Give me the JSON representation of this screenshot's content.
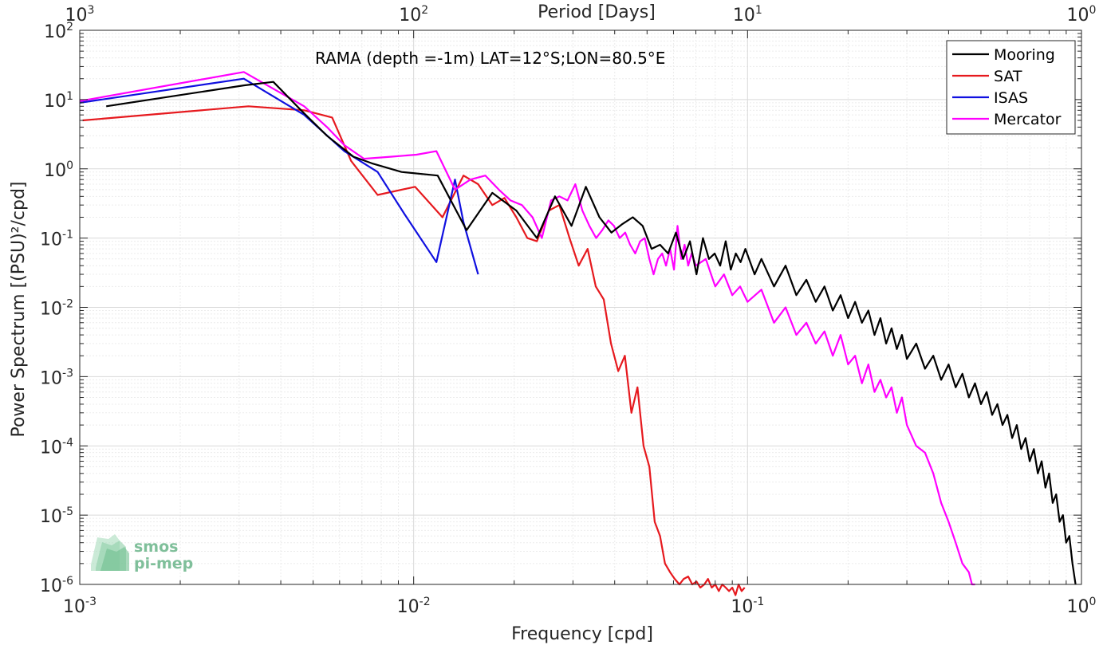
{
  "colors": {
    "Mooring": "#000000",
    "SAT": "#e6191e",
    "ISAS": "#1010e0",
    "Mercator": "#ff00ff"
  },
  "logo": {
    "line1": "smos",
    "line2": "pi-mep"
  },
  "chart_data": {
    "type": "line",
    "title": "RAMA (depth =-1m) LAT=12°S;LON=80.5°E",
    "xlabel": "Frequency [cpd]",
    "ylabel": "Power Spectrum [(PSU)²/cpd]",
    "top_xlabel": "Period [Days]",
    "xscale": "log",
    "yscale": "log",
    "xlim": [
      0.001,
      1
    ],
    "ylim": [
      1e-06,
      100
    ],
    "grid": true,
    "legend_position": "top-right",
    "bottom_ticks": [
      {
        "base": "10",
        "exp": "-3"
      },
      {
        "base": "10",
        "exp": "-2"
      },
      {
        "base": "10",
        "exp": "-1"
      },
      {
        "base": "10",
        "exp": "0"
      }
    ],
    "top_ticks": [
      {
        "base": "10",
        "exp": "3"
      },
      {
        "base": "10",
        "exp": "2"
      },
      {
        "base": "10",
        "exp": "1"
      },
      {
        "base": "10",
        "exp": "0"
      }
    ],
    "y_ticks": [
      {
        "base": "10",
        "exp": "2"
      },
      {
        "base": "10",
        "exp": "1"
      },
      {
        "base": "10",
        "exp": "0"
      },
      {
        "base": "10",
        "exp": "-1"
      },
      {
        "base": "10",
        "exp": "-2"
      },
      {
        "base": "10",
        "exp": "-3"
      },
      {
        "base": "10",
        "exp": "-4"
      },
      {
        "base": "10",
        "exp": "-5"
      },
      {
        "base": "10",
        "exp": "-6"
      }
    ],
    "series": [
      {
        "name": "Mooring",
        "x": [
          0.0012,
          0.0031,
          0.0038,
          0.0046,
          0.0055,
          0.0066,
          0.0075,
          0.0092,
          0.0118,
          0.0144,
          0.0172,
          0.0203,
          0.0234,
          0.0265,
          0.0297,
          0.0328,
          0.036,
          0.0391,
          0.0422,
          0.0453,
          0.0485,
          0.0516,
          0.0547,
          0.0578,
          0.061,
          0.0641,
          0.0672,
          0.0703,
          0.0735,
          0.0766,
          0.0797,
          0.0828,
          0.086,
          0.0891,
          0.0922,
          0.0953,
          0.0985,
          0.105,
          0.11,
          0.12,
          0.13,
          0.14,
          0.15,
          0.16,
          0.17,
          0.18,
          0.19,
          0.2,
          0.21,
          0.22,
          0.23,
          0.24,
          0.25,
          0.26,
          0.27,
          0.28,
          0.29,
          0.3,
          0.32,
          0.34,
          0.36,
          0.38,
          0.4,
          0.42,
          0.44,
          0.46,
          0.48,
          0.5,
          0.52,
          0.54,
          0.56,
          0.58,
          0.6,
          0.62,
          0.64,
          0.66,
          0.68,
          0.7,
          0.72,
          0.74,
          0.76,
          0.78,
          0.8,
          0.82,
          0.84,
          0.86,
          0.88,
          0.9,
          0.92,
          0.94,
          0.96
        ],
        "y": [
          8,
          16,
          18,
          7,
          3,
          1.5,
          1.2,
          0.9,
          0.8,
          0.13,
          0.45,
          0.25,
          0.1,
          0.4,
          0.15,
          0.55,
          0.2,
          0.12,
          0.16,
          0.2,
          0.15,
          0.07,
          0.08,
          0.06,
          0.12,
          0.05,
          0.09,
          0.03,
          0.1,
          0.05,
          0.06,
          0.04,
          0.09,
          0.035,
          0.06,
          0.045,
          0.07,
          0.03,
          0.05,
          0.02,
          0.04,
          0.015,
          0.025,
          0.012,
          0.02,
          0.009,
          0.015,
          0.007,
          0.012,
          0.006,
          0.009,
          0.004,
          0.007,
          0.003,
          0.005,
          0.0025,
          0.004,
          0.0018,
          0.003,
          0.0013,
          0.002,
          0.0009,
          0.0015,
          0.0007,
          0.0011,
          0.0005,
          0.0008,
          0.0004,
          0.0006,
          0.00028,
          0.0004,
          0.0002,
          0.00028,
          0.00013,
          0.0002,
          9e-05,
          0.00013,
          6e-05,
          9e-05,
          4e-05,
          6e-05,
          2.5e-05,
          4e-05,
          1.5e-05,
          2e-05,
          8e-06,
          1e-05,
          4e-06,
          5e-06,
          2e-06,
          1e-06
        ]
      },
      {
        "name": "SAT",
        "x": [
          0.00102,
          0.0032,
          0.0047,
          0.0057,
          0.0065,
          0.0078,
          0.0101,
          0.0122,
          0.0141,
          0.0156,
          0.0172,
          0.0187,
          0.0203,
          0.0219,
          0.0234,
          0.0254,
          0.0273,
          0.0293,
          0.0312,
          0.0332,
          0.0351,
          0.0371,
          0.039,
          0.041,
          0.0429,
          0.0449,
          0.0468,
          0.0488,
          0.0508,
          0.0527,
          0.0547,
          0.0566,
          0.0586,
          0.0605,
          0.0625,
          0.0644,
          0.0664,
          0.0683,
          0.0703,
          0.0722,
          0.0742,
          0.0761,
          0.0781,
          0.08,
          0.082,
          0.084,
          0.086,
          0.088,
          0.09,
          0.092,
          0.094,
          0.096,
          0.098
        ],
        "y": [
          5,
          8,
          7,
          5.5,
          1.3,
          0.42,
          0.55,
          0.2,
          0.8,
          0.6,
          0.3,
          0.38,
          0.2,
          0.1,
          0.09,
          0.25,
          0.3,
          0.1,
          0.04,
          0.07,
          0.02,
          0.013,
          0.003,
          0.0012,
          0.002,
          0.0003,
          0.0007,
          0.0001,
          5e-05,
          8e-06,
          5e-06,
          2e-06,
          1.5e-06,
          1.2e-06,
          1e-06,
          1.2e-06,
          1.3e-06,
          1e-06,
          1.1e-06,
          9e-07,
          1e-06,
          1.2e-06,
          9e-07,
          1e-06,
          8e-07,
          1e-06,
          9e-07,
          8e-07,
          9e-07,
          7e-07,
          1e-06,
          8e-07,
          9e-07
        ]
      },
      {
        "name": "ISAS",
        "x": [
          0.001,
          0.0031,
          0.0047,
          0.0062,
          0.0078,
          0.0094,
          0.0117,
          0.0133,
          0.0141,
          0.0156
        ],
        "y": [
          9,
          20,
          6,
          1.8,
          0.9,
          0.22,
          0.045,
          0.7,
          0.17,
          0.03
        ]
      },
      {
        "name": "Mercator",
        "x": [
          0.001,
          0.0031,
          0.0047,
          0.0055,
          0.0062,
          0.0071,
          0.0086,
          0.0102,
          0.0117,
          0.0133,
          0.0148,
          0.0164,
          0.018,
          0.0195,
          0.0211,
          0.0227,
          0.0242,
          0.0258,
          0.0273,
          0.0289,
          0.0305,
          0.032,
          0.0336,
          0.0352,
          0.0367,
          0.0383,
          0.0398,
          0.0414,
          0.043,
          0.0445,
          0.0461,
          0.0477,
          0.0492,
          0.0508,
          0.0523,
          0.0539,
          0.0555,
          0.057,
          0.0586,
          0.0602,
          0.0617,
          0.0633,
          0.0648,
          0.0664,
          0.068,
          0.07,
          0.075,
          0.08,
          0.085,
          0.09,
          0.095,
          0.1,
          0.11,
          0.12,
          0.13,
          0.14,
          0.15,
          0.16,
          0.17,
          0.18,
          0.19,
          0.2,
          0.21,
          0.22,
          0.23,
          0.24,
          0.25,
          0.26,
          0.27,
          0.28,
          0.29,
          0.3,
          0.32,
          0.34,
          0.36,
          0.38,
          0.4,
          0.42,
          0.44,
          0.46,
          0.47,
          0.48
        ],
        "y": [
          9.5,
          25,
          8,
          4,
          2.2,
          1.4,
          1.5,
          1.6,
          1.8,
          0.5,
          0.7,
          0.8,
          0.5,
          0.35,
          0.3,
          0.2,
          0.1,
          0.35,
          0.4,
          0.35,
          0.6,
          0.25,
          0.15,
          0.1,
          0.13,
          0.18,
          0.15,
          0.1,
          0.12,
          0.08,
          0.06,
          0.09,
          0.1,
          0.05,
          0.03,
          0.05,
          0.06,
          0.04,
          0.07,
          0.035,
          0.15,
          0.05,
          0.08,
          0.04,
          0.06,
          0.04,
          0.05,
          0.02,
          0.03,
          0.015,
          0.02,
          0.012,
          0.018,
          0.006,
          0.01,
          0.004,
          0.006,
          0.003,
          0.0045,
          0.002,
          0.004,
          0.0015,
          0.002,
          0.0008,
          0.0015,
          0.0006,
          0.0009,
          0.0005,
          0.0007,
          0.0003,
          0.0005,
          0.0002,
          0.0001,
          8e-05,
          4e-05,
          1.5e-05,
          8e-06,
          4e-06,
          2e-06,
          1.5e-06,
          1e-06,
          1e-06
        ]
      }
    ]
  }
}
